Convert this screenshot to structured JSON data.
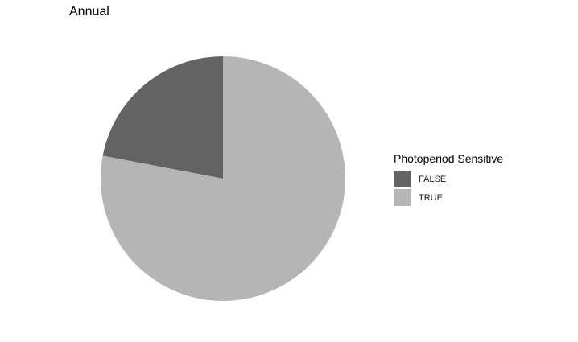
{
  "chart_data": {
    "type": "pie",
    "title": "Annual",
    "categories": [
      "FALSE",
      "TRUE"
    ],
    "values": [
      0.22,
      0.78
    ],
    "colors": [
      "#636363",
      "#b5b5b5"
    ],
    "legend": {
      "title": "Photoperiod Sensitive",
      "position": "right"
    },
    "start_angle_deg": 0,
    "direction": "counterclockwise-from-top"
  }
}
